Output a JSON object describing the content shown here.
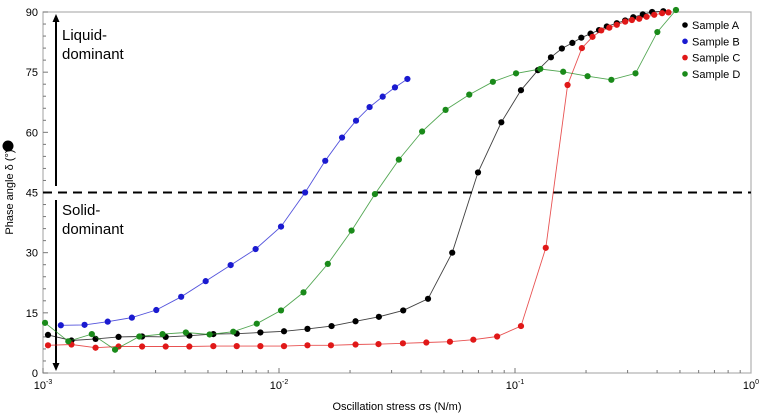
{
  "chart_data": {
    "type": "line",
    "title": "",
    "xlabel": "Oscillation stress σs (N/m)",
    "ylabel": "Phase angle δ (°)",
    "x_scale": "log",
    "xlim": [
      0.001,
      1
    ],
    "ylim": [
      0,
      90
    ],
    "x_ticks": [
      {
        "value": 0.001,
        "base": "10",
        "exp": "-3"
      },
      {
        "value": 0.01,
        "base": "10",
        "exp": "-2"
      },
      {
        "value": 0.1,
        "base": "10",
        "exp": "-1"
      },
      {
        "value": 1,
        "base": "10",
        "exp": "0"
      }
    ],
    "y_ticks": [
      "0",
      "15",
      "30",
      "45",
      "60",
      "75",
      "90"
    ],
    "grid": false,
    "legend_position": "top-right",
    "reference_line": {
      "y": 45,
      "style": "dashed"
    },
    "annotations": [
      {
        "text_line1": "Liquid-",
        "text_line2": "dominant",
        "arrow": "up"
      },
      {
        "text_line1": "Solid-",
        "text_line2": "dominant",
        "arrow": "down"
      }
    ],
    "series": [
      {
        "name": "Sample A",
        "color": "#000000",
        "x": [
          0.00105,
          0.00132,
          0.00167,
          0.00209,
          0.00263,
          0.00331,
          0.00417,
          0.00527,
          0.00662,
          0.00834,
          0.0105,
          0.0132,
          0.0167,
          0.0211,
          0.0265,
          0.0336,
          0.0428,
          0.0542,
          0.0697,
          0.0875,
          0.106,
          0.125,
          0.142,
          0.158,
          0.175,
          0.191,
          0.209,
          0.227,
          0.245,
          0.27,
          0.293,
          0.317,
          0.348,
          0.381,
          0.425
        ],
        "y": [
          9.5,
          8.1,
          8.5,
          9.0,
          9.1,
          9.0,
          9.3,
          9.7,
          9.8,
          10.1,
          10.4,
          11.0,
          11.7,
          12.9,
          14.0,
          15.6,
          18.5,
          30.0,
          50.0,
          62.5,
          70.5,
          75.5,
          78.7,
          80.9,
          82.3,
          83.6,
          84.6,
          85.5,
          86.4,
          87.2,
          87.9,
          88.7,
          89.4,
          90.0,
          90.2
        ]
      },
      {
        "name": "Sample B",
        "color": "#1a1ad0",
        "x": [
          0.00119,
          0.0015,
          0.00188,
          0.00238,
          0.00302,
          0.00385,
          0.00489,
          0.00624,
          0.00796,
          0.0102,
          0.0129,
          0.0157,
          0.0185,
          0.0212,
          0.0242,
          0.0275,
          0.031,
          0.035
        ],
        "y": [
          11.9,
          12.0,
          12.8,
          13.8,
          15.7,
          19.0,
          22.9,
          26.9,
          30.9,
          36.5,
          45.0,
          52.9,
          58.7,
          62.9,
          66.3,
          68.9,
          71.2,
          73.3
        ]
      },
      {
        "name": "Sample C",
        "color": "#e01818",
        "x": [
          0.00105,
          0.00132,
          0.00167,
          0.00209,
          0.00263,
          0.00331,
          0.00417,
          0.00527,
          0.00662,
          0.00834,
          0.0105,
          0.0132,
          0.0166,
          0.0211,
          0.0264,
          0.0335,
          0.0421,
          0.053,
          0.0666,
          0.084,
          0.106,
          0.135,
          0.167,
          0.192,
          0.213,
          0.232,
          0.251,
          0.27,
          0.293,
          0.313,
          0.336,
          0.361,
          0.389,
          0.42,
          0.447
        ],
        "y": [
          6.9,
          7.1,
          6.3,
          6.6,
          6.6,
          6.6,
          6.6,
          6.7,
          6.7,
          6.7,
          6.7,
          6.9,
          6.9,
          7.1,
          7.2,
          7.4,
          7.6,
          7.8,
          8.3,
          9.1,
          11.7,
          31.2,
          71.8,
          81.0,
          83.8,
          85.4,
          86.1,
          86.8,
          87.6,
          88.0,
          88.3,
          88.8,
          89.3,
          89.7,
          89.9
        ]
      },
      {
        "name": "Sample D",
        "color": "#1a8a1a",
        "x": [
          0.00102,
          0.00128,
          0.00161,
          0.00202,
          0.00256,
          0.00321,
          0.00403,
          0.00508,
          0.0064,
          0.00805,
          0.0102,
          0.0127,
          0.0161,
          0.0203,
          0.0255,
          0.0322,
          0.0404,
          0.0508,
          0.064,
          0.0806,
          0.101,
          0.128,
          0.16,
          0.203,
          0.256,
          0.324,
          0.401,
          0.481
        ],
        "y": [
          12.5,
          7.9,
          9.7,
          5.8,
          9.1,
          9.7,
          10.1,
          9.6,
          10.3,
          12.3,
          15.6,
          20.1,
          27.2,
          35.5,
          44.6,
          53.2,
          60.2,
          65.6,
          69.4,
          72.6,
          74.7,
          75.8,
          75.1,
          74.0,
          73.1,
          74.7,
          85.0,
          90.9
        ]
      }
    ]
  }
}
